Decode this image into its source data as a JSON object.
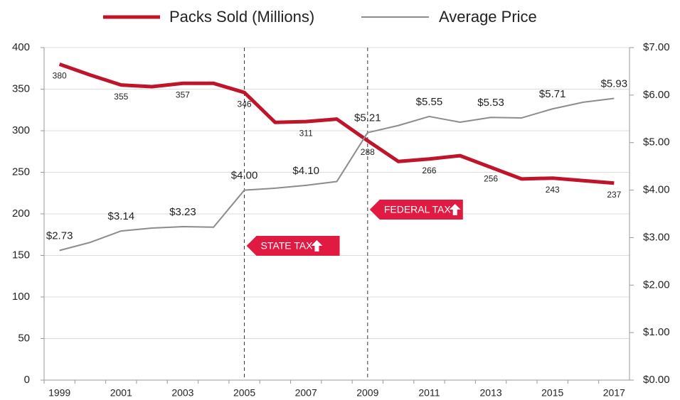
{
  "chart_data": {
    "type": "line",
    "categories": [
      "1999",
      null,
      "2001",
      null,
      "2003",
      null,
      "2005",
      null,
      "2007",
      null,
      "2009",
      null,
      "2011",
      null,
      "2013",
      null,
      "2015",
      null,
      "2017"
    ],
    "series": [
      {
        "name": "Packs Sold (Millions)",
        "color": "#c0142b",
        "values": [
          380,
          367,
          355,
          353,
          357,
          357,
          346,
          310,
          311,
          314,
          288,
          263,
          266,
          270,
          256,
          242,
          243,
          240,
          237
        ]
      },
      {
        "name": "Average Price",
        "color": "#8c8c8c",
        "axis": "y2",
        "values": [
          2.73,
          2.9,
          3.14,
          3.2,
          3.23,
          3.22,
          4.0,
          4.04,
          4.1,
          4.18,
          5.21,
          5.36,
          5.55,
          5.43,
          5.53,
          5.52,
          5.71,
          5.85,
          5.93
        ],
        "value_labels": [
          "$2.73",
          null,
          "$3.14",
          null,
          "$3.23",
          null,
          "$4.00",
          null,
          "$4.10",
          null,
          "$5.21",
          null,
          "$5.55",
          null,
          "$5.53",
          null,
          "$5.71",
          null,
          "$5.93"
        ]
      }
    ],
    "ylim": [
      0,
      400
    ],
    "yticks": [
      0,
      50,
      100,
      150,
      200,
      250,
      300,
      350,
      400
    ],
    "y2lim": [
      0,
      7
    ],
    "y2ticks": [
      {
        "value": 0,
        "label": "$0.00"
      },
      {
        "value": 1,
        "label": "$1.00"
      },
      {
        "value": 2,
        "label": "$2.00"
      },
      {
        "value": 3,
        "label": "$3.00"
      },
      {
        "value": 4,
        "label": "$4.00"
      },
      {
        "value": 5,
        "label": "$5.00"
      },
      {
        "value": 6,
        "label": "$6.00"
      },
      {
        "value": 7,
        "label": "$7.00"
      }
    ],
    "annotations": [
      {
        "text": "STATE TAX",
        "category": "2005"
      },
      {
        "text": "FEDERAL TAX",
        "category": "2009"
      }
    ],
    "grid": true,
    "legend": "top"
  }
}
